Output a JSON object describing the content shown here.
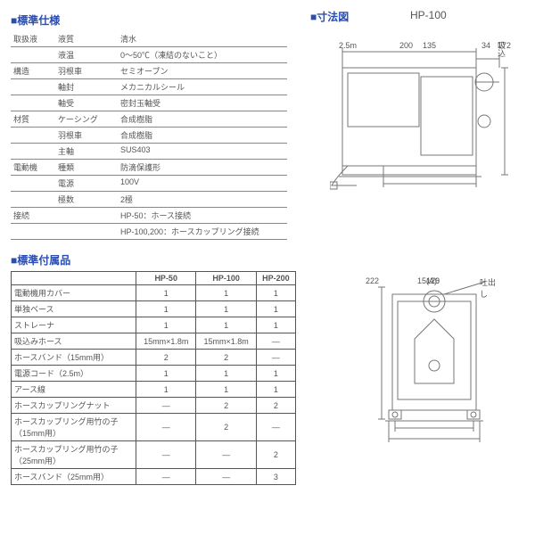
{
  "colors": {
    "heading": "#2a4db0",
    "border": "#555555",
    "line": "#777777",
    "text": "#555555",
    "bg": "#ffffff"
  },
  "spec_title": "■標準仕様",
  "dim_title": "■寸法図",
  "model_label": "HP-100",
  "spec": [
    {
      "cat": "取扱液",
      "sub": "液質",
      "val": "清水"
    },
    {
      "cat": "",
      "sub": "液温",
      "val": "0～50℃（凍結のないこと）"
    },
    {
      "cat": "構造",
      "sub": "羽根車",
      "val": "セミオープン"
    },
    {
      "cat": "",
      "sub": "軸封",
      "val": "メカニカルシール"
    },
    {
      "cat": "",
      "sub": "軸受",
      "val": "密封玉軸受"
    },
    {
      "cat": "材質",
      "sub": "ケーシング",
      "val": "合成樹脂"
    },
    {
      "cat": "",
      "sub": "羽根車",
      "val": "合成樹脂"
    },
    {
      "cat": "",
      "sub": "主軸",
      "val": "SUS403"
    },
    {
      "cat": "電動機",
      "sub": "種類",
      "val": "防滴保護形"
    },
    {
      "cat": "",
      "sub": "電源",
      "val": "100V"
    },
    {
      "cat": "",
      "sub": "極数",
      "val": "2極"
    },
    {
      "cat": "接続",
      "sub": "",
      "val": "HP-50：ホース接続"
    },
    {
      "cat": "",
      "sub": "",
      "val": "HP-100,200：ホースカップリング接続"
    }
  ],
  "acc_title": "■標準付属品",
  "acc_cols": [
    "",
    "HP-50",
    "HP-100",
    "HP-200"
  ],
  "acc_rows": [
    [
      "電動機用カバー",
      "1",
      "1",
      "1"
    ],
    [
      "単独ベース",
      "1",
      "1",
      "1"
    ],
    [
      "ストレーナ",
      "1",
      "1",
      "1"
    ],
    [
      "吸込みホース",
      "15mm×1.8m",
      "15mm×1.8m",
      "—"
    ],
    [
      "ホースバンド（15mm用）",
      "2",
      "2",
      "—"
    ],
    [
      "電源コード（2.5m）",
      "1",
      "1",
      "1"
    ],
    [
      "アース線",
      "1",
      "1",
      "1"
    ],
    [
      "ホースカップリングナット",
      "—",
      "2",
      "2"
    ],
    [
      "ホースカップリング用竹の子（15mm用）",
      "—",
      "2",
      "—"
    ],
    [
      "ホースカップリング用竹の子（25mm用）",
      "—",
      "—",
      "2"
    ],
    [
      "ホースバンド（25mm用）",
      "—",
      "—",
      "3"
    ]
  ],
  "dims_side": {
    "w200": "200",
    "w34": "34",
    "w135": "135",
    "h172": "172",
    "cord": "2.5m",
    "suction": "吸込"
  },
  "dims_front": {
    "h222": "222",
    "w120": "120",
    "w126": "126",
    "discharge": "吐出し",
    "a": "15(A)"
  }
}
